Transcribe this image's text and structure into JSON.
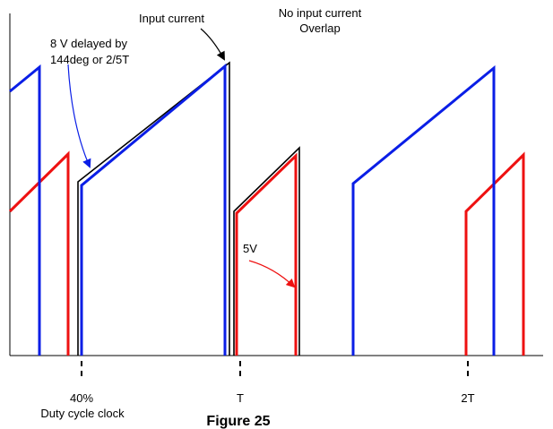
{
  "colors": {
    "blue": "#0a1ee6",
    "red": "#ee1111",
    "black": "#000000"
  },
  "labels": {
    "input_current": "Input current",
    "no_input_line1": "No input current",
    "no_input_line2": "Overlap",
    "eight_v_line1": "8 V delayed by",
    "eight_v_line2": "144deg or 2/5T",
    "five_v": "5V",
    "tick_40": "40%",
    "duty_cycle": "Duty cycle clock",
    "tick_t": "T",
    "tick_2t": "2T",
    "figure_title": "Figure 25"
  }
}
